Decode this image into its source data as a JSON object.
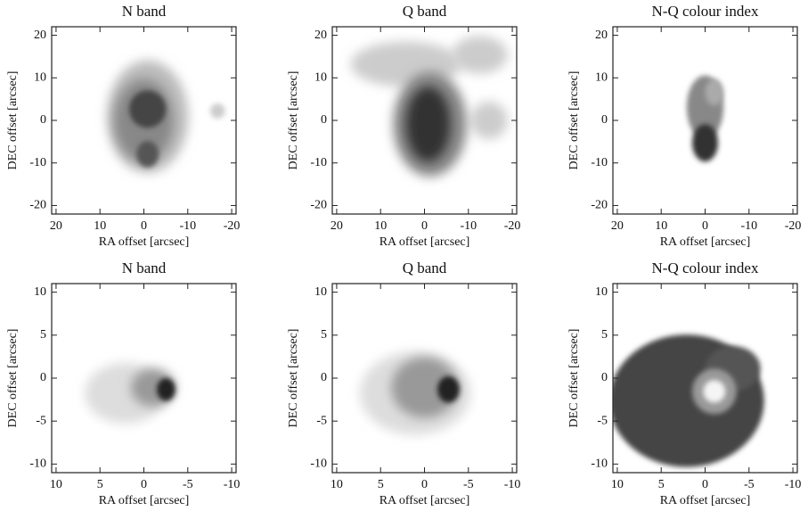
{
  "chart_data": [
    {
      "type": "image",
      "title": "N band",
      "xlabel": "RA offset [arcsec]",
      "ylabel": "DEC offset [arcsec]",
      "xlim": [
        21,
        -21
      ],
      "ylim": [
        -22,
        22
      ],
      "xticks": [
        20,
        10,
        0,
        -10,
        -20
      ],
      "yticks": [
        -20,
        -10,
        0,
        10,
        20
      ]
    },
    {
      "type": "image",
      "title": "Q band",
      "xlabel": "RA offset [arcsec]",
      "ylabel": "DEC offset [arcsec]",
      "xlim": [
        21,
        -21
      ],
      "ylim": [
        -22,
        22
      ],
      "xticks": [
        20,
        10,
        0,
        -10,
        -20
      ],
      "yticks": [
        -20,
        -10,
        0,
        10,
        20
      ]
    },
    {
      "type": "image",
      "title": "N-Q colour index",
      "xlabel": "RA offset [arcsec]",
      "ylabel": "DEC offset [arcsec]",
      "xlim": [
        21,
        -21
      ],
      "ylim": [
        -22,
        22
      ],
      "xticks": [
        20,
        10,
        0,
        -10,
        -20
      ],
      "yticks": [
        -20,
        -10,
        0,
        10,
        20
      ]
    },
    {
      "type": "image",
      "title": "N band",
      "xlabel": "RA offset [arcsec]",
      "ylabel": "DEC offset [arcsec]",
      "xlim": [
        10.5,
        -10.5
      ],
      "ylim": [
        -11,
        11
      ],
      "xticks": [
        10,
        5,
        0,
        -5,
        -10
      ],
      "yticks": [
        -10,
        -5,
        0,
        5,
        10
      ]
    },
    {
      "type": "image",
      "title": "Q band",
      "xlabel": "RA offset [arcsec]",
      "ylabel": "DEC offset [arcsec]",
      "xlim": [
        10.5,
        -10.5
      ],
      "ylim": [
        -11,
        11
      ],
      "xticks": [
        10,
        5,
        0,
        -5,
        -10
      ],
      "yticks": [
        -10,
        -5,
        0,
        5,
        10
      ]
    },
    {
      "type": "image",
      "title": "N-Q colour index",
      "xlabel": "RA offset [arcsec]",
      "ylabel": "DEC offset [arcsec]",
      "xlim": [
        10.5,
        -10.5
      ],
      "ylim": [
        -11,
        11
      ],
      "xticks": [
        10,
        5,
        0,
        -5,
        -10
      ],
      "yticks": [
        -10,
        -5,
        0,
        5,
        10
      ]
    }
  ]
}
